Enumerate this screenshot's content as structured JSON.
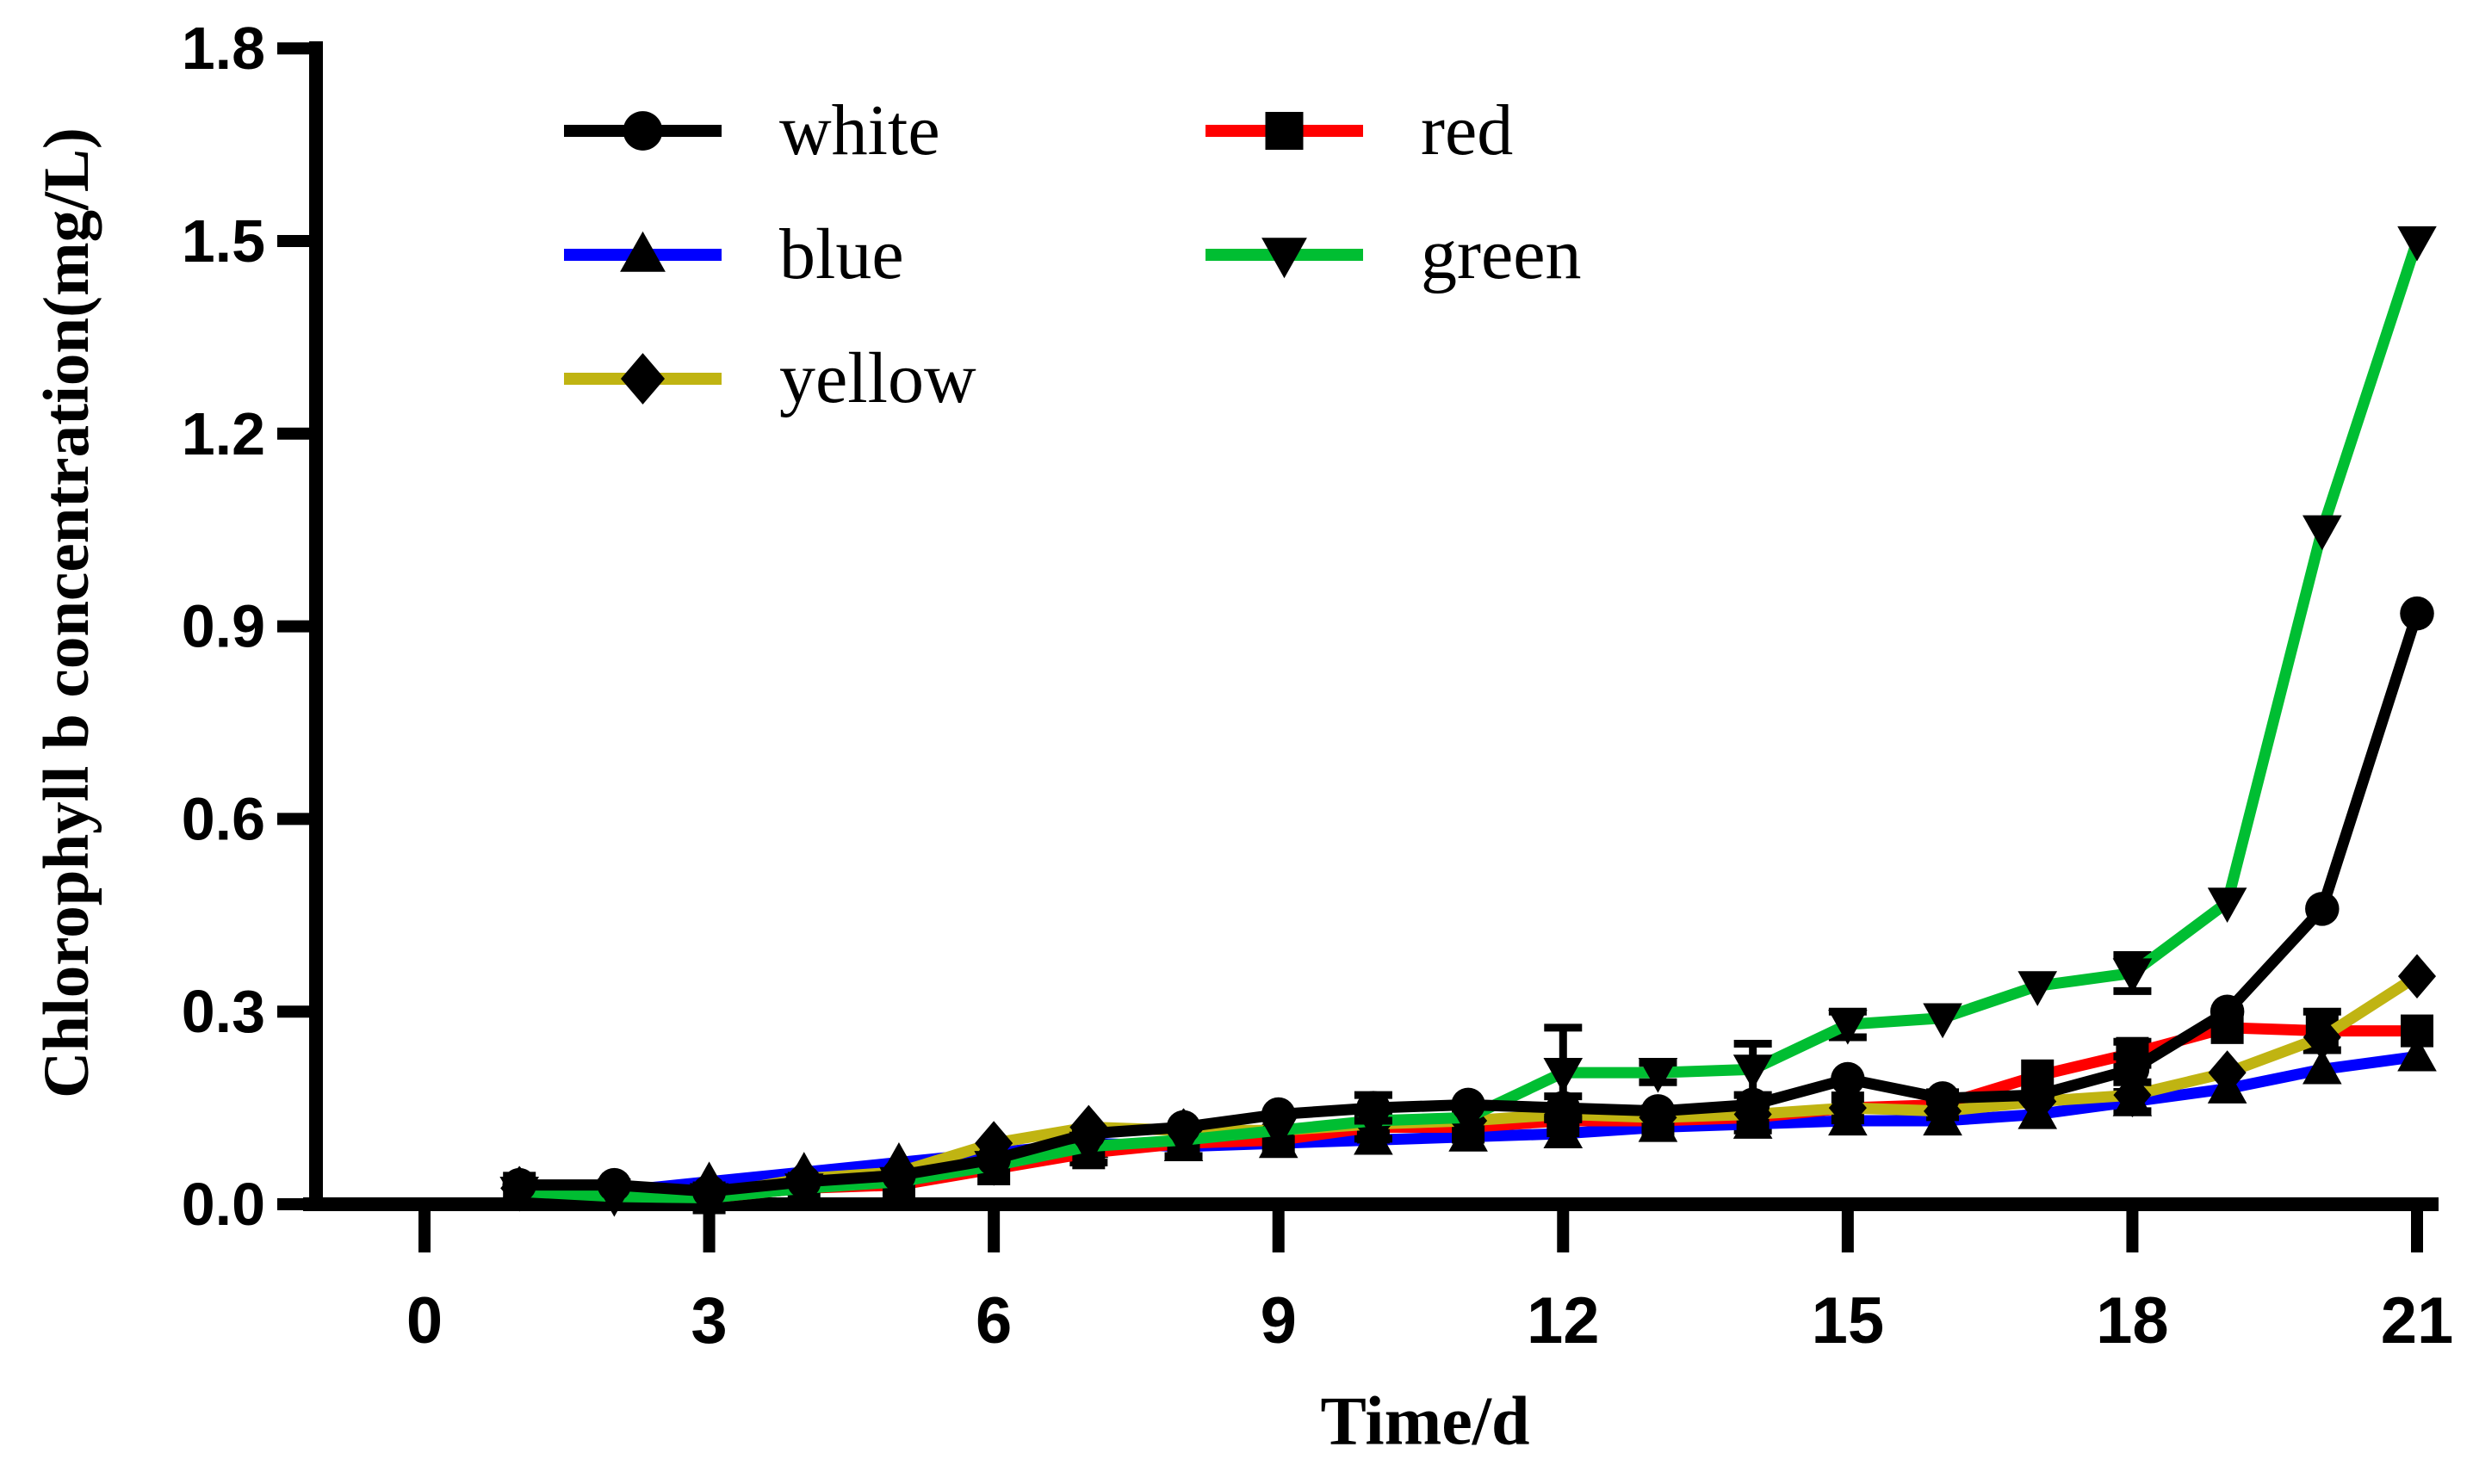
{
  "figure": {
    "background": "#ffffff",
    "axis_color": "#000000",
    "tick_label_color": "#000000"
  },
  "chart_data": {
    "type": "line",
    "title": "",
    "xlabel": "Time/d",
    "ylabel": "Chlorophyll b concentration(mg/L)",
    "x": [
      1,
      2,
      3,
      4,
      5,
      6,
      7,
      8,
      9,
      10,
      11,
      12,
      13,
      14,
      15,
      16,
      17,
      18,
      19,
      20,
      21
    ],
    "xlim": [
      0,
      21
    ],
    "ylim": [
      0,
      1.8
    ],
    "x_ticks": [
      0,
      3,
      6,
      9,
      12,
      15,
      18,
      21
    ],
    "y_ticks": [
      "0.0",
      "0.3",
      "0.6",
      "0.9",
      "1.2",
      "1.5",
      "1.8"
    ],
    "grid": false,
    "legend_position": "top-left-inside",
    "series": [
      {
        "name": "white",
        "color": "#000000",
        "marker": "circle",
        "values": [
          0.03,
          0.03,
          0.02,
          0.035,
          0.045,
          0.07,
          0.11,
          0.12,
          0.14,
          0.15,
          0.155,
          0.15,
          0.145,
          0.155,
          0.195,
          0.165,
          0.17,
          0.21,
          0.3,
          0.46,
          0.92
        ],
        "errors": [
          0,
          0,
          0,
          0,
          0,
          0,
          0,
          0,
          0,
          0.02,
          0,
          0.018,
          0,
          0,
          0,
          0,
          0,
          0.02,
          0,
          0,
          0
        ]
      },
      {
        "name": "red",
        "color": "#ff0000",
        "marker": "square",
        "values": [
          0.025,
          0.015,
          0.01,
          0.025,
          0.03,
          0.055,
          0.08,
          0.095,
          0.1,
          0.12,
          0.12,
          0.13,
          0.13,
          0.135,
          0.15,
          0.155,
          0.2,
          0.235,
          0.275,
          0.27,
          0.27
        ],
        "errors": [
          0,
          0,
          0,
          0,
          0,
          0,
          0.015,
          0.02,
          0,
          0.018,
          0,
          0,
          0,
          0,
          0,
          0,
          0,
          0.018,
          0,
          0.03,
          0
        ]
      },
      {
        "name": "blue",
        "color": "#0000ff",
        "marker": "triangle-up",
        "values": [
          0.025,
          0.02,
          0.035,
          0.05,
          0.065,
          0.08,
          0.095,
          0.09,
          0.095,
          0.1,
          0.105,
          0.11,
          0.12,
          0.125,
          0.13,
          0.13,
          0.14,
          0.16,
          0.18,
          0.21,
          0.23
        ],
        "errors": [
          0,
          0,
          0,
          0,
          0,
          0,
          0,
          0,
          0,
          0,
          0,
          0,
          0,
          0.01,
          0,
          0,
          0,
          0.015,
          0,
          0,
          0
        ]
      },
      {
        "name": "green",
        "color": "#00be32",
        "marker": "triangle-down",
        "values": [
          0.02,
          0.012,
          0.01,
          0.025,
          0.035,
          0.06,
          0.09,
          0.1,
          0.115,
          0.13,
          0.135,
          0.205,
          0.205,
          0.21,
          0.28,
          0.29,
          0.34,
          0.36,
          0.47,
          1.05,
          1.5
        ],
        "errors": [
          0,
          0,
          0,
          0,
          0,
          0,
          0,
          0,
          0,
          0,
          0,
          0.07,
          0.015,
          0.04,
          0.02,
          0,
          0,
          0.028,
          0,
          0,
          0
        ]
      },
      {
        "name": "yellow",
        "color": "#c0b412",
        "marker": "diamond",
        "values": [
          0.025,
          0.02,
          0.015,
          0.04,
          0.05,
          0.095,
          0.12,
          0.115,
          0.115,
          0.125,
          0.13,
          0.14,
          0.135,
          0.14,
          0.15,
          0.145,
          0.16,
          0.17,
          0.205,
          0.26,
          0.355
        ],
        "errors": [
          0,
          0,
          0,
          0,
          0,
          0,
          0,
          0,
          0,
          0,
          0,
          0,
          0,
          0,
          0,
          0,
          0,
          0,
          0,
          0,
          0
        ]
      }
    ]
  }
}
